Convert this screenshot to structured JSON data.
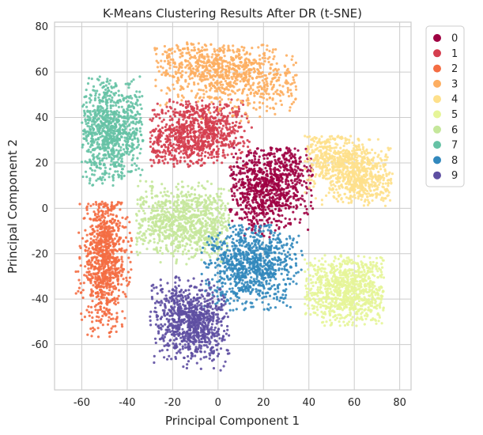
{
  "chart_data": {
    "type": "scatter",
    "title": "K-Means Clustering Results After DR (t-SNE)",
    "xlabel": "Principal Component 1",
    "ylabel": "Principal Component 2",
    "xlim": [
      -72,
      85
    ],
    "ylim": [
      -80,
      82
    ],
    "xticks": [
      -60,
      -40,
      -20,
      0,
      20,
      40,
      60,
      80
    ],
    "yticks": [
      -60,
      -40,
      -20,
      0,
      20,
      40,
      60,
      80
    ],
    "grid": true,
    "legend_position": "outside-right",
    "series": [
      {
        "name": "0",
        "color": "#9e0142",
        "center": [
          22,
          10
        ],
        "spread": [
          9,
          11
        ],
        "x_range": [
          5,
          42
        ],
        "y_range": [
          -13,
          27
        ],
        "angle": -30
      },
      {
        "name": "1",
        "color": "#d53e4f",
        "center": [
          -10,
          33
        ],
        "spread": [
          12,
          8
        ],
        "x_range": [
          -30,
          15
        ],
        "y_range": [
          18,
          48
        ],
        "angle": 15
      },
      {
        "name": "2",
        "color": "#f46d43",
        "center": [
          -50,
          -22
        ],
        "spread": [
          5,
          15
        ],
        "x_range": [
          -63,
          -38
        ],
        "y_range": [
          -58,
          3
        ],
        "angle": 0
      },
      {
        "name": "3",
        "color": "#fdae61",
        "center": [
          3,
          60
        ],
        "spread": [
          18,
          7
        ],
        "x_range": [
          -28,
          35
        ],
        "y_range": [
          38,
          73
        ],
        "angle": -10
      },
      {
        "name": "4",
        "color": "#fee08b",
        "center": [
          58,
          17
        ],
        "spread": [
          12,
          7
        ],
        "x_range": [
          38,
          77
        ],
        "y_range": [
          1,
          32
        ],
        "angle": -35
      },
      {
        "name": "5",
        "color": "#e6f598",
        "center": [
          57,
          -36
        ],
        "spread": [
          11,
          8
        ],
        "x_range": [
          38,
          73
        ],
        "y_range": [
          -52,
          -20
        ],
        "angle": 0
      },
      {
        "name": "6",
        "color": "#c5e79b",
        "center": [
          -14,
          -6
        ],
        "spread": [
          13,
          8
        ],
        "x_range": [
          -36,
          5
        ],
        "y_range": [
          -25,
          12
        ],
        "angle": 0
      },
      {
        "name": "7",
        "color": "#66c2a5",
        "center": [
          -47,
          34
        ],
        "spread": [
          8,
          11
        ],
        "x_range": [
          -60,
          -33
        ],
        "y_range": [
          10,
          58
        ],
        "angle": 0
      },
      {
        "name": "8",
        "color": "#3288bd",
        "center": [
          15,
          -25
        ],
        "spread": [
          10,
          9
        ],
        "x_range": [
          -8,
          38
        ],
        "y_range": [
          -45,
          -7
        ],
        "angle": 15
      },
      {
        "name": "9",
        "color": "#5e4fa2",
        "center": [
          -11,
          -50
        ],
        "spread": [
          9,
          8
        ],
        "x_range": [
          -30,
          5
        ],
        "y_range": [
          -72,
          -29
        ],
        "angle": -35
      }
    ]
  }
}
